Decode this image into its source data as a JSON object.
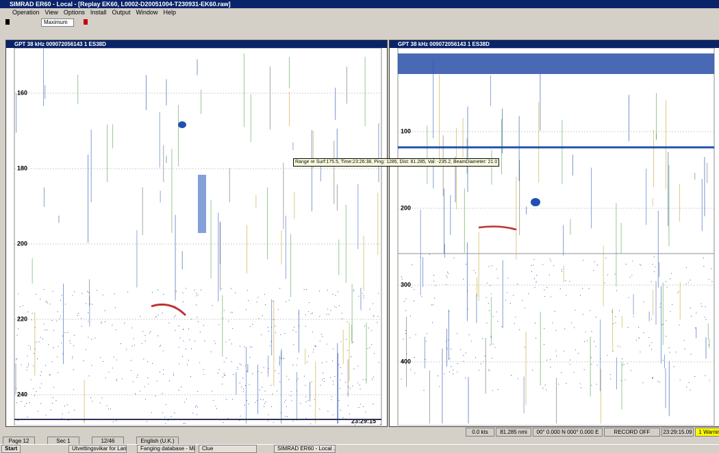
{
  "window": {
    "title": "SIMRAD ER60 - Local - [Replay EK60, L0002-D20051004-T230931-EK60.raw]",
    "menu": [
      "Operation",
      "View",
      "Options",
      "Install",
      "Output",
      "Window",
      "Help"
    ],
    "display_mode": "Maximum"
  },
  "panes": [
    {
      "title": "GPT 38 kHz 009072056143 1 ES38D",
      "depth_labels": [
        160,
        180,
        200,
        220,
        240
      ],
      "time_label": "23:29:15"
    },
    {
      "title": "GPT 38 kHz 009072056143 1 ES38D",
      "depth_labels": [
        100,
        200,
        300,
        400
      ]
    }
  ],
  "tooltip": "Range re Surf:175.5, Time:23:26:38, Ping: 1285, Dist: 81.285, Val: -235.2, BeamDiameter: 21.0",
  "status_bar": [
    "0.0 kts",
    "81.285 nmi",
    "00° 0.000 N 000° 0.000 E",
    "RECORD OFF",
    "23:29:15.09",
    "1 Warning"
  ],
  "doc_status": [
    "Page 12",
    "Sec 1",
    "12/46",
    "English (U.K.)"
  ],
  "taskbar": {
    "start": "Start",
    "items": [
      "Utvettingsvikar for Lande...",
      "Fanging database - Micro...",
      "Clue",
      "SIMRAD ER60 - Local ..."
    ]
  }
}
